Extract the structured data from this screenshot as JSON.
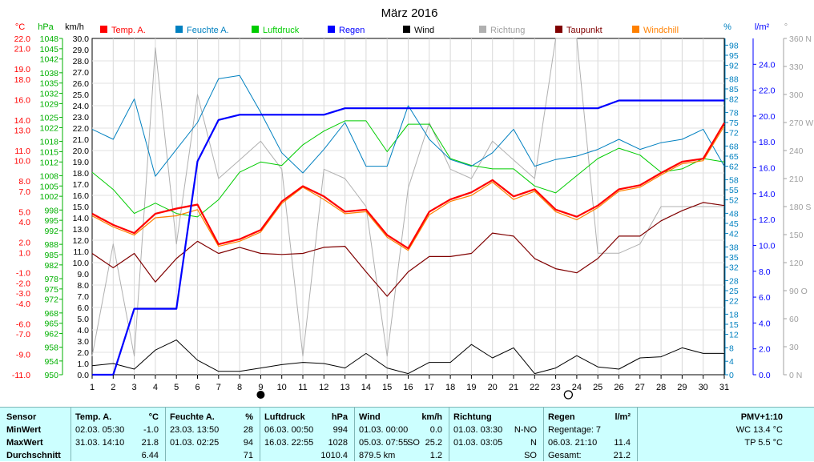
{
  "colors": {
    "temp": "#ff0000",
    "humidity": "#0080c0",
    "pressure": "#00cc00",
    "rain": "#0000ff",
    "wind": "#000000",
    "direction": "#b0b0b0",
    "dewpoint": "#800000",
    "windchill": "#ff8000",
    "axis_temp": "#ff0000",
    "axis_hpa": "#00b000",
    "axis_pct": "#0080c0",
    "axis_rain": "#0000ff",
    "axis_dir": "#a0a0a0"
  },
  "chart_data": {
    "type": "line",
    "title": "März 2016",
    "axis_units": {
      "temp": "°C",
      "pressure": "hPa",
      "wind": "km/h",
      "humidity": "%",
      "rain": "l/m²",
      "direction": "°"
    },
    "legend": [
      "Temp. A.",
      "Feuchte A.",
      "Luftdruck",
      "Regen",
      "Wind",
      "Richtung",
      "Taupunkt",
      "Windchill"
    ],
    "x": [
      1,
      2,
      3,
      4,
      5,
      6,
      7,
      8,
      9,
      10,
      11,
      12,
      13,
      14,
      15,
      16,
      17,
      18,
      19,
      20,
      21,
      22,
      23,
      24,
      25,
      26,
      27,
      28,
      29,
      30,
      31
    ],
    "xlim": [
      1,
      31
    ],
    "axes": {
      "temp": {
        "min": -11,
        "max": 22,
        "ticks": [
          "22.0",
          "21.0",
          "19.0",
          "18.0",
          "16.0",
          "14.0",
          "13.0",
          "11.0",
          "10.0",
          "8.0",
          "7.0",
          "5.0",
          "4.0",
          "2.0",
          "1.0",
          "-1.0",
          "-2.0",
          "-3.0",
          "-4.0",
          "-6.0",
          "-7.0",
          "-9.0",
          "-11.0"
        ]
      },
      "pressure": {
        "min": 950,
        "max": 1048,
        "ticks": [
          "1048",
          "1045",
          "1042",
          "1038",
          "1035",
          "1032",
          "1029",
          "1025",
          "1022",
          "1018",
          "1015",
          "1012",
          "1008",
          "1005",
          "1002",
          "998",
          "995",
          "992",
          "988",
          "985",
          "982",
          "978",
          "975",
          "972",
          "968",
          "965",
          "962",
          "958",
          "954",
          "950"
        ]
      },
      "wind": {
        "min": 0,
        "max": 30,
        "ticks": [
          "30.0",
          "29.0",
          "28.0",
          "27.0",
          "26.0",
          "25.0",
          "24.0",
          "23.0",
          "22.0",
          "21.0",
          "20.0",
          "19.0",
          "18.0",
          "17.0",
          "16.0",
          "15.0",
          "14.0",
          "13.0",
          "12.0",
          "11.0",
          "10.0",
          "9.0",
          "8.0",
          "7.0",
          "6.0",
          "5.0",
          "4.0",
          "3.0",
          "2.0",
          "1.0",
          "0.0"
        ]
      },
      "humidity": {
        "min": 0,
        "max": 100,
        "ticks": [
          "98",
          "95",
          "92",
          "88",
          "85",
          "82",
          "78",
          "75",
          "72",
          "68",
          "65",
          "62",
          "58",
          "55",
          "52",
          "48",
          "45",
          "42",
          "38",
          "35",
          "32",
          "28",
          "25",
          "22",
          "18",
          "15",
          "12",
          "8",
          "4",
          "0"
        ]
      },
      "rain": {
        "min": 0,
        "max": 26,
        "ticks": [
          "24.0",
          "22.0",
          "20.0",
          "18.0",
          "16.0",
          "14.0",
          "12.0",
          "10.0",
          "8.0",
          "6.0",
          "4.0",
          "2.0",
          "0.0"
        ]
      },
      "direction": {
        "min": 0,
        "max": 360,
        "ticks": [
          "360 N",
          "330",
          "300",
          "270 W",
          "240",
          "210",
          "180 S",
          "150",
          "120",
          "90 O",
          "60",
          "30",
          "0 N"
        ]
      }
    },
    "moon": [
      {
        "x": 9,
        "phase": "new"
      },
      {
        "x": 23.6,
        "phase": "full"
      }
    ],
    "series": [
      {
        "name": "Temp. A.",
        "axis": "temp",
        "color": "#ff0000",
        "width": 2.2,
        "values": [
          4.8,
          3.7,
          2.9,
          4.8,
          5.3,
          5.7,
          1.8,
          2.3,
          3.2,
          6.0,
          7.5,
          6.5,
          5.0,
          5.2,
          2.7,
          1.4,
          5.0,
          6.2,
          6.9,
          8.1,
          6.5,
          7.2,
          5.2,
          4.5,
          5.6,
          7.2,
          7.6,
          8.8,
          9.9,
          10.2,
          13.7
        ]
      },
      {
        "name": "Windchill",
        "axis": "temp",
        "color": "#ff8000",
        "width": 1.2,
        "values": [
          4.6,
          3.5,
          2.7,
          4.4,
          4.6,
          5.2,
          1.6,
          2.1,
          3.0,
          5.8,
          7.4,
          6.2,
          4.8,
          5.0,
          2.5,
          1.2,
          4.7,
          6.0,
          6.6,
          7.9,
          6.2,
          7.0,
          5.0,
          4.2,
          5.4,
          7.0,
          7.4,
          8.6,
          9.7,
          10.0,
          13.4
        ]
      },
      {
        "name": "Taupunkt",
        "axis": "temp",
        "color": "#800000",
        "width": 1.2,
        "values": [
          0.9,
          -0.5,
          0.9,
          -1.9,
          0.4,
          2.1,
          0.9,
          1.5,
          0.9,
          0.8,
          0.9,
          1.5,
          1.6,
          -0.9,
          -3.3,
          -0.9,
          0.6,
          0.6,
          0.9,
          2.9,
          2.6,
          0.4,
          -0.6,
          -1.0,
          0.4,
          2.6,
          2.6,
          4.1,
          5.1,
          5.9,
          5.6
        ]
      },
      {
        "name": "Feuchte A.",
        "axis": "humidity",
        "color": "#0080c0",
        "width": 1,
        "values": [
          73,
          70,
          82,
          59,
          67,
          75,
          88,
          89,
          78,
          66,
          60,
          67,
          75,
          62,
          62,
          80,
          70,
          64,
          62,
          66,
          73,
          62,
          64,
          65,
          67,
          70,
          67,
          69,
          70,
          73,
          62
        ]
      },
      {
        "name": "Luftdruck",
        "axis": "pressure",
        "color": "#00cc00",
        "width": 1,
        "values": [
          1009,
          1004,
          997,
          1000,
          997,
          996,
          1001,
          1009,
          1012,
          1011,
          1017,
          1021,
          1024,
          1024,
          1015,
          1023,
          1023,
          1013,
          1011,
          1010,
          1010,
          1005,
          1003,
          1008,
          1013,
          1016,
          1014,
          1009,
          1010,
          1013,
          1012
        ]
      },
      {
        "name": "Regen",
        "axis": "rain",
        "color": "#0000ff",
        "width": 2.2,
        "step_values": true,
        "values": [
          0.0,
          0.0,
          5.1,
          5.1,
          5.1,
          16.5,
          19.7,
          20.1,
          20.1,
          20.1,
          20.1,
          20.1,
          20.6,
          20.6,
          20.6,
          20.6,
          20.6,
          20.6,
          20.6,
          20.6,
          20.6,
          20.6,
          20.6,
          20.6,
          20.6,
          21.2,
          21.2,
          21.2,
          21.2,
          21.2,
          21.2
        ]
      },
      {
        "name": "Wind",
        "axis": "wind",
        "color": "#000000",
        "width": 1,
        "values": [
          0.8,
          1.0,
          0.5,
          2.2,
          3.1,
          1.3,
          0.3,
          0.3,
          0.6,
          0.9,
          1.1,
          1.0,
          0.6,
          1.9,
          0.6,
          0.1,
          1.1,
          1.1,
          2.7,
          1.5,
          2.4,
          0.1,
          0.6,
          1.7,
          0.7,
          0.5,
          1.5,
          1.6,
          2.4,
          1.9,
          1.9
        ]
      },
      {
        "name": "Richtung",
        "axis": "direction",
        "color": "#b0b0b0",
        "width": 1,
        "values": [
          20,
          140,
          20,
          350,
          140,
          300,
          210,
          230,
          250,
          220,
          20,
          220,
          210,
          180,
          20,
          200,
          270,
          220,
          210,
          250,
          230,
          210,
          370,
          360,
          130,
          130,
          140,
          180,
          180,
          180,
          180
        ]
      }
    ]
  },
  "stats": {
    "sensor": {
      "header": "Sensor",
      "rows": [
        "MinWert",
        "MaxWert",
        "Durchschnitt"
      ]
    },
    "temp": {
      "header": "Temp. A.",
      "unit": "°C",
      "min": {
        "date": "02.03.",
        "time": "05:30",
        "value": "-1.0"
      },
      "max": {
        "date": "31.03.",
        "time": "14:10",
        "value": "21.8"
      },
      "avg": "6.44"
    },
    "humidity": {
      "header": "Feuchte A.",
      "unit": "%",
      "min": {
        "date": "23.03.",
        "time": "13:50",
        "value": "28"
      },
      "max": {
        "date": "01.03.",
        "time": "02:25",
        "value": "94"
      },
      "avg": "71"
    },
    "pressure": {
      "header": "Luftdruck",
      "unit": "hPa",
      "min": {
        "date": "06.03.",
        "time": "00:50",
        "value": "994"
      },
      "max": {
        "date": "16.03.",
        "time": "22:55",
        "value": "1028"
      },
      "avg": "1010.4"
    },
    "wind": {
      "header": "Wind",
      "unit": "km/h",
      "min": {
        "date": "01.03.",
        "time": "00:00",
        "value": "0.0"
      },
      "max": {
        "date": "05.03.",
        "time": "07:55",
        "dir": "SO",
        "value": "25.2"
      },
      "avg_left": "879.5 km",
      "avg": "1.2"
    },
    "direction": {
      "header": "Richtung",
      "min": {
        "date": "01.03.",
        "time": "03:30",
        "value": "N-NO"
      },
      "max": {
        "date": "01.03.",
        "time": "03:05",
        "value": "N"
      },
      "avg": "SO"
    },
    "rain": {
      "header": "Regen",
      "unit": "l/m²",
      "row1": "Regentage: 7",
      "row2": {
        "date": "06.03.",
        "time": "21:10",
        "value": "11.4"
      },
      "row3": {
        "label": "Gesamt:",
        "value": "21.2"
      }
    },
    "pmv": {
      "header": "PMV+1:10",
      "row1": "WC 13.4 °C",
      "row2": "TP 5.5 °C"
    }
  }
}
